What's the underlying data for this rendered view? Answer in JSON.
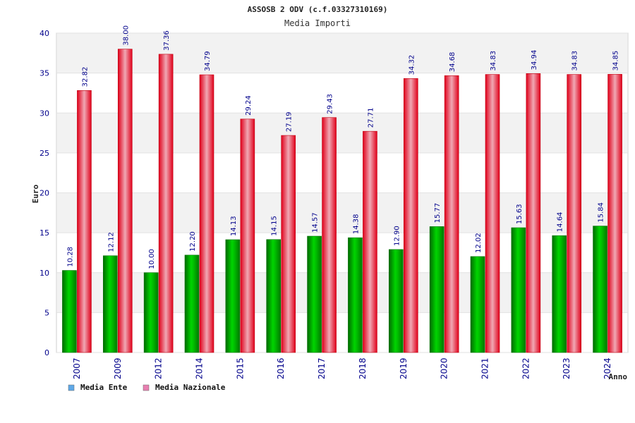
{
  "chart_data": {
    "type": "bar",
    "title": "ASSOSB 2 ODV (c.f.03327310169)",
    "subtitle": "Media Importi",
    "xlabel": "Anno",
    "ylabel": "Euro",
    "ylim": [
      0,
      40
    ],
    "yticks": [
      0,
      5,
      10,
      15,
      20,
      25,
      30,
      35,
      40
    ],
    "grid": true,
    "legend_position": "bottom-left",
    "categories": [
      "2007",
      "2009",
      "2012",
      "2014",
      "2015",
      "2016",
      "2017",
      "2018",
      "2019",
      "2020",
      "2021",
      "2022",
      "2023",
      "2024"
    ],
    "series": [
      {
        "name": "Media Ente",
        "color": "#00b400",
        "legend_color": "#5fa8e8",
        "values": [
          10.28,
          12.12,
          10.0,
          12.2,
          14.13,
          14.15,
          14.57,
          14.38,
          12.9,
          15.77,
          12.02,
          15.63,
          14.64,
          15.84
        ],
        "labels": [
          "10.28",
          "12.12",
          "10.00",
          "12.20",
          "14.13",
          "14.15",
          "14.57",
          "14.38",
          "12.90",
          "15.77",
          "12.02",
          "15.63",
          "14.64",
          "15.84"
        ]
      },
      {
        "name": "Media Nazionale",
        "color": "#e8101e",
        "legend_color": "#e87fb0",
        "values": [
          32.82,
          38.0,
          37.36,
          34.79,
          29.24,
          27.19,
          29.43,
          27.71,
          34.32,
          34.68,
          34.83,
          34.94,
          34.83,
          34.85
        ],
        "labels": [
          "32.82",
          "38.00",
          "37.36",
          "34.79",
          "29.24",
          "27.19",
          "29.43",
          "27.71",
          "34.32",
          "34.68",
          "34.83",
          "34.94",
          "34.83",
          "34.85"
        ]
      }
    ]
  }
}
